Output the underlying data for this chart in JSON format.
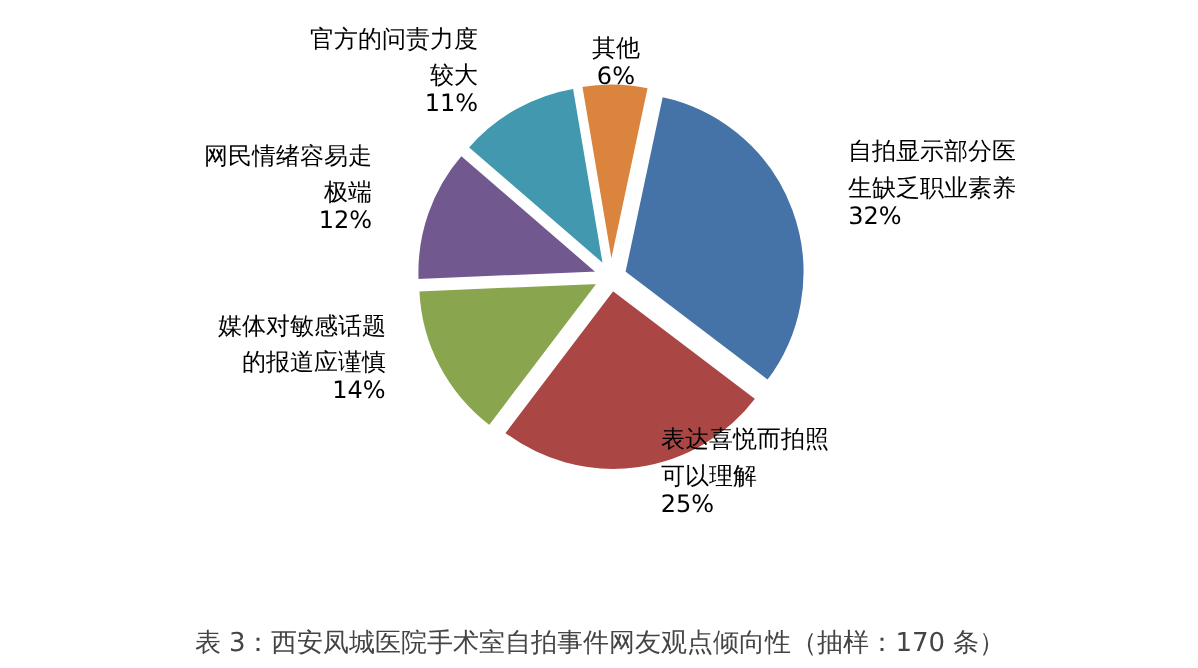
{
  "chart_data": {
    "type": "pie",
    "title": "表 3：西安凤城医院手术室自拍事件网友观点倾向性（抽样：170 条）",
    "categories": [
      "自拍显示部分医生缺乏职业素养",
      "表达喜悦而拍照可以理解",
      "媒体对敏感话题的报道应谨慎",
      "网民情绪容易走极端",
      "官方的问责力度较大",
      "其他"
    ],
    "values": [
      32,
      25,
      14,
      12,
      11,
      6
    ],
    "colors": [
      "#4572a7",
      "#aa4643",
      "#89a54e",
      "#71588f",
      "#4198af",
      "#db843d"
    ],
    "value_labels": [
      "32%",
      "25%",
      "14%",
      "12%",
      "11%",
      "6%"
    ]
  }
}
